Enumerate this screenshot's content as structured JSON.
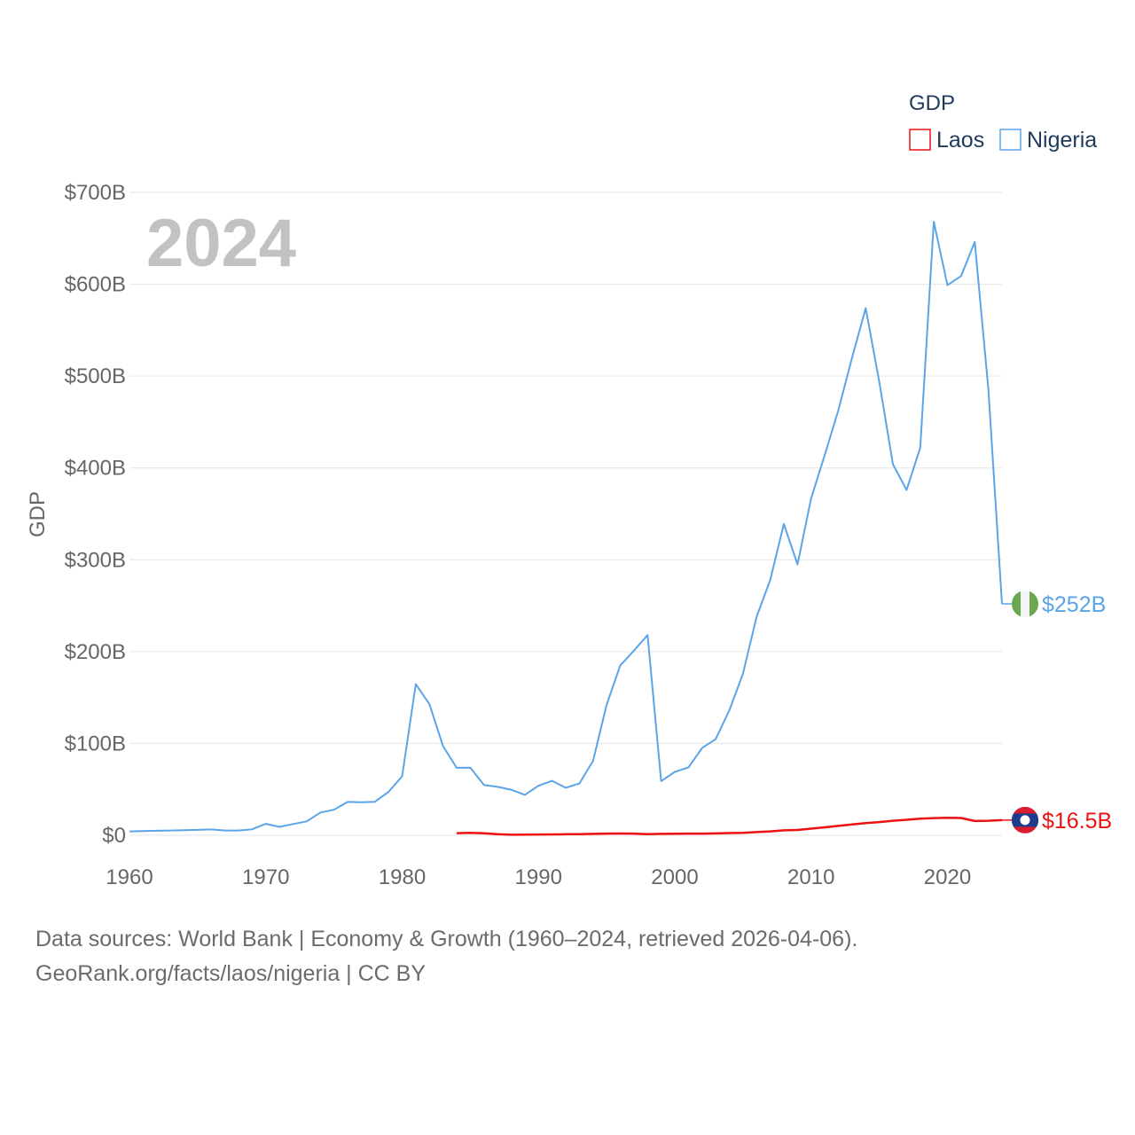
{
  "chart_data": {
    "type": "line",
    "title": "",
    "year_label": "2024",
    "ylabel": "GDP",
    "xlabel": "",
    "xlim": [
      1960,
      2024
    ],
    "ylim": [
      0,
      700
    ],
    "x_ticks": [
      1960,
      1970,
      1980,
      1990,
      2000,
      2010,
      2020
    ],
    "y_ticks": [
      {
        "value": 0,
        "label": "$0"
      },
      {
        "value": 100,
        "label": "$100B"
      },
      {
        "value": 200,
        "label": "$200B"
      },
      {
        "value": 300,
        "label": "$300B"
      },
      {
        "value": 400,
        "label": "$400B"
      },
      {
        "value": 500,
        "label": "$500B"
      },
      {
        "value": 600,
        "label": "$600B"
      },
      {
        "value": 700,
        "label": "$700B"
      }
    ],
    "units": "billions USD",
    "legend": {
      "title": "GDP",
      "position": "top-right"
    },
    "series": [
      {
        "name": "Laos",
        "color": "#ee1111",
        "end_label": "$16.5B",
        "flag": "laos-flag",
        "x": [
          1984,
          1985,
          1986,
          1987,
          1988,
          1989,
          1990,
          1991,
          1992,
          1993,
          1994,
          1995,
          1996,
          1997,
          1998,
          1999,
          2000,
          2001,
          2002,
          2003,
          2004,
          2005,
          2006,
          2007,
          2008,
          2009,
          2010,
          2011,
          2012,
          2013,
          2014,
          2015,
          2016,
          2017,
          2018,
          2019,
          2020,
          2021,
          2022,
          2023,
          2024
        ],
        "values": [
          2.3,
          2.7,
          2.1,
          1.3,
          0.6,
          0.7,
          0.9,
          1.0,
          1.2,
          1.3,
          1.5,
          1.8,
          1.9,
          1.8,
          1.3,
          1.5,
          1.7,
          1.8,
          1.8,
          2.0,
          2.4,
          2.7,
          3.5,
          4.2,
          5.4,
          5.8,
          7.2,
          8.7,
          10.2,
          11.9,
          13.3,
          14.4,
          15.8,
          16.9,
          18.1,
          18.7,
          19.1,
          18.8,
          15.5,
          15.8,
          16.5
        ]
      },
      {
        "name": "Nigeria",
        "color": "#5ba4e8",
        "end_label": "$252B",
        "flag": "nigeria-flag",
        "x": [
          1960,
          1961,
          1962,
          1963,
          1964,
          1965,
          1966,
          1967,
          1968,
          1969,
          1970,
          1971,
          1972,
          1973,
          1974,
          1975,
          1976,
          1977,
          1978,
          1979,
          1980,
          1981,
          1982,
          1983,
          1984,
          1985,
          1986,
          1987,
          1988,
          1989,
          1990,
          1991,
          1992,
          1993,
          1994,
          1995,
          1996,
          1997,
          1998,
          1999,
          2000,
          2001,
          2002,
          2003,
          2004,
          2005,
          2006,
          2007,
          2008,
          2009,
          2010,
          2011,
          2012,
          2013,
          2014,
          2015,
          2016,
          2017,
          2018,
          2019,
          2020,
          2021,
          2022,
          2023,
          2024
        ],
        "values": [
          4.2,
          4.5,
          4.9,
          5.2,
          5.5,
          5.9,
          6.4,
          5.2,
          5.2,
          6.6,
          12.5,
          9.2,
          12.3,
          15.2,
          24.8,
          27.8,
          36.3,
          36.0,
          36.5,
          47.2,
          64.2,
          164.5,
          142.8,
          97.1,
          73.5,
          73.7,
          54.8,
          52.7,
          49.6,
          44.0,
          54.0,
          59.3,
          51.8,
          56.4,
          81.0,
          142.0,
          185.0,
          201.0,
          218.0,
          59.0,
          69.0,
          74.0,
          95.0,
          104.7,
          136.0,
          176.0,
          238.0,
          278.0,
          339.0,
          295.0,
          367.0,
          414.0,
          463.0,
          520.0,
          574.0,
          494.0,
          404.0,
          376.0,
          422.0,
          668.0,
          599.0,
          609.0,
          646.0,
          486.0,
          252.0
        ]
      }
    ]
  },
  "source": {
    "line1": "Data sources: World Bank | Economy & Growth (1960–2024, retrieved 2026-04-06).",
    "line2": "GeoRank.org/facts/laos/nigeria | CC BY"
  }
}
